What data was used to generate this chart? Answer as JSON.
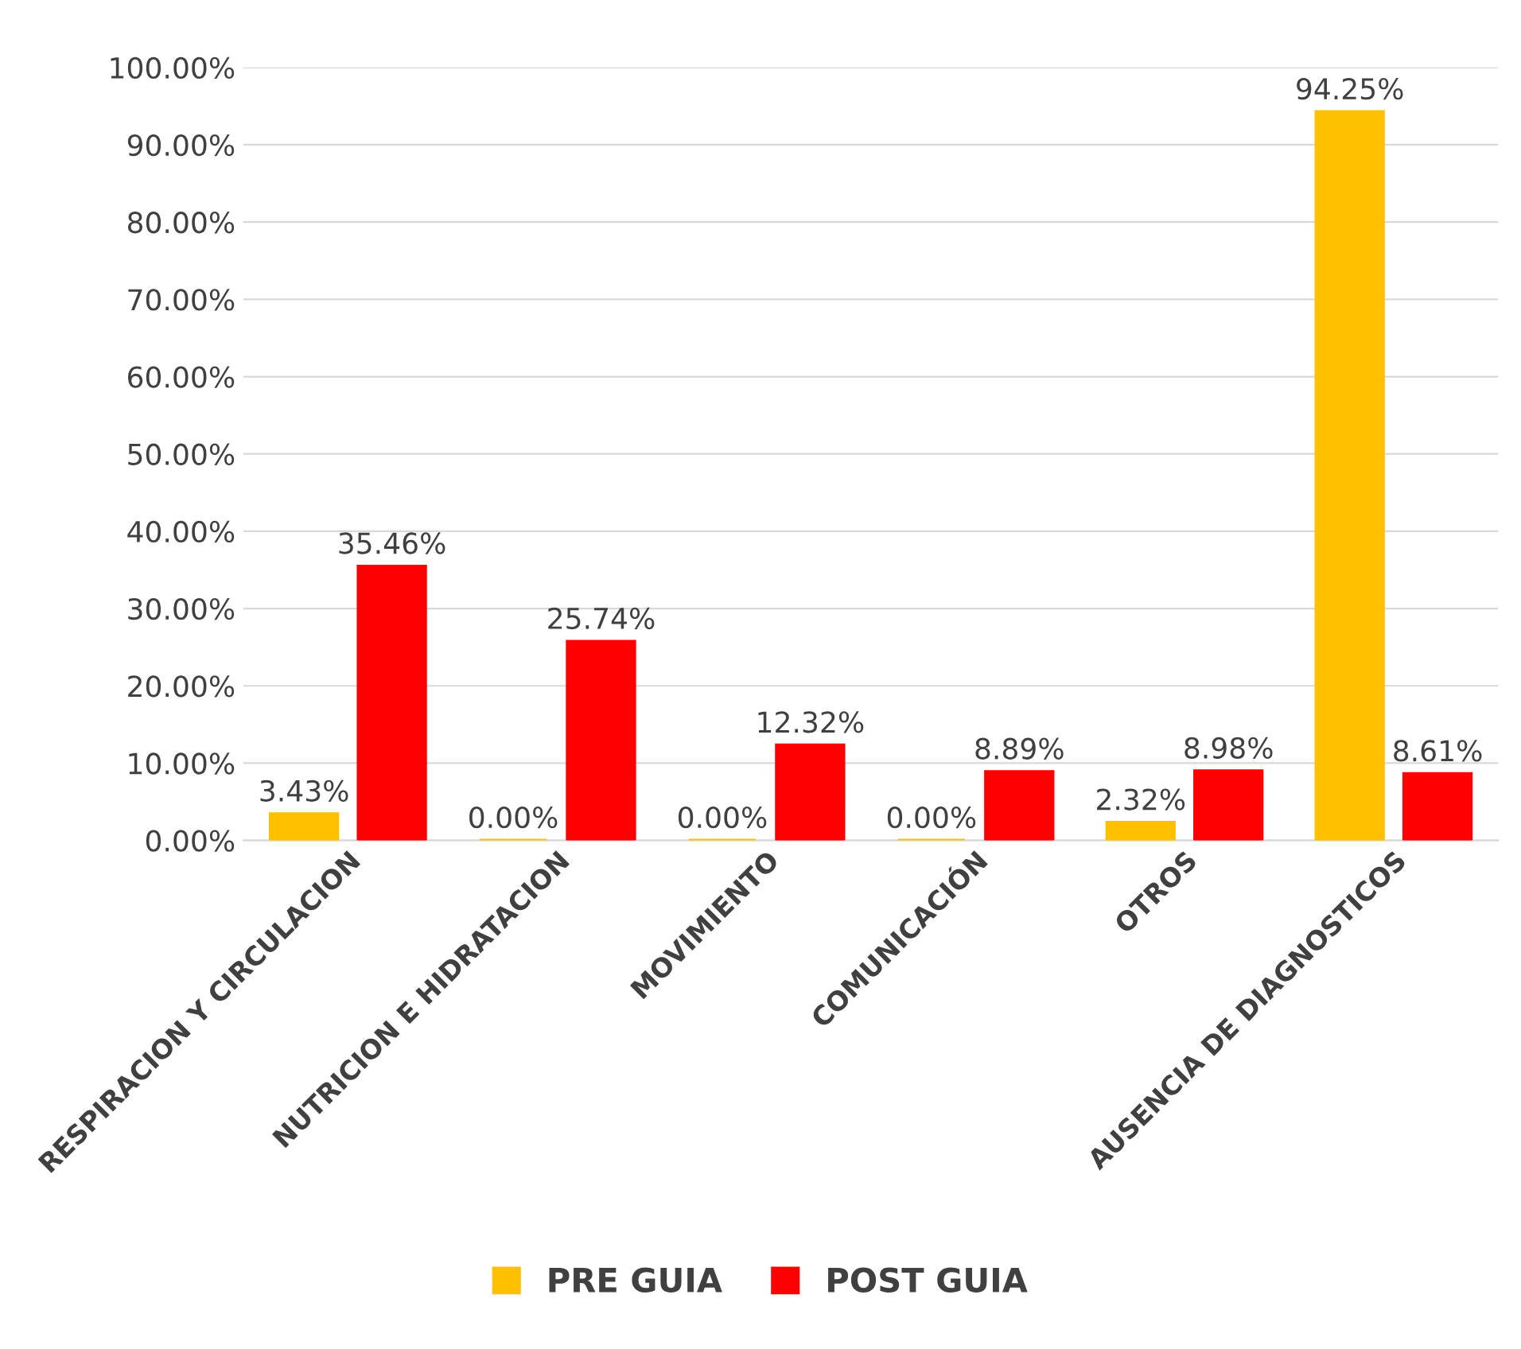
{
  "chart_data": {
    "type": "bar",
    "categories": [
      "RESPIRACION Y CIRCULACION",
      "NUTRICION E HIDRATACION",
      "MOVIMIENTO",
      "COMUNICACIÓN",
      "OTROS",
      "AUSENCIA DE DIAGNOSTICOS"
    ],
    "series": [
      {
        "name": "PRE GUIA",
        "color": "#ffc000",
        "values": [
          3.43,
          0,
          0,
          0,
          2.32,
          94.25
        ],
        "value_labels": [
          "3.43%",
          "0.00%",
          "0.00%",
          "0.00%",
          "2.32%",
          "94.25%"
        ]
      },
      {
        "name": "POST GUIA",
        "color": "#ff0000",
        "values": [
          35.46,
          25.74,
          12.32,
          8.89,
          8.98,
          8.61
        ],
        "value_labels": [
          "35.46%",
          "25.74%",
          "12.32%",
          "8.89%",
          "8.98%",
          "8.61%"
        ]
      }
    ],
    "ylim": [
      0,
      100
    ],
    "yticks": [
      {
        "value": 0,
        "label": "0.00%"
      },
      {
        "value": 10,
        "label": "10.00%"
      },
      {
        "value": 20,
        "label": "20.00%"
      },
      {
        "value": 30,
        "label": "30.00%"
      },
      {
        "value": 40,
        "label": "40.00%"
      },
      {
        "value": 50,
        "label": "50.00%"
      },
      {
        "value": 60,
        "label": "60.00%"
      },
      {
        "value": 70,
        "label": "70.00%"
      },
      {
        "value": 80,
        "label": "80.00%"
      },
      {
        "value": 90,
        "label": "90.00%"
      },
      {
        "value": 100,
        "label": "100.00%"
      }
    ],
    "grid": "y",
    "legend": "bottom"
  }
}
